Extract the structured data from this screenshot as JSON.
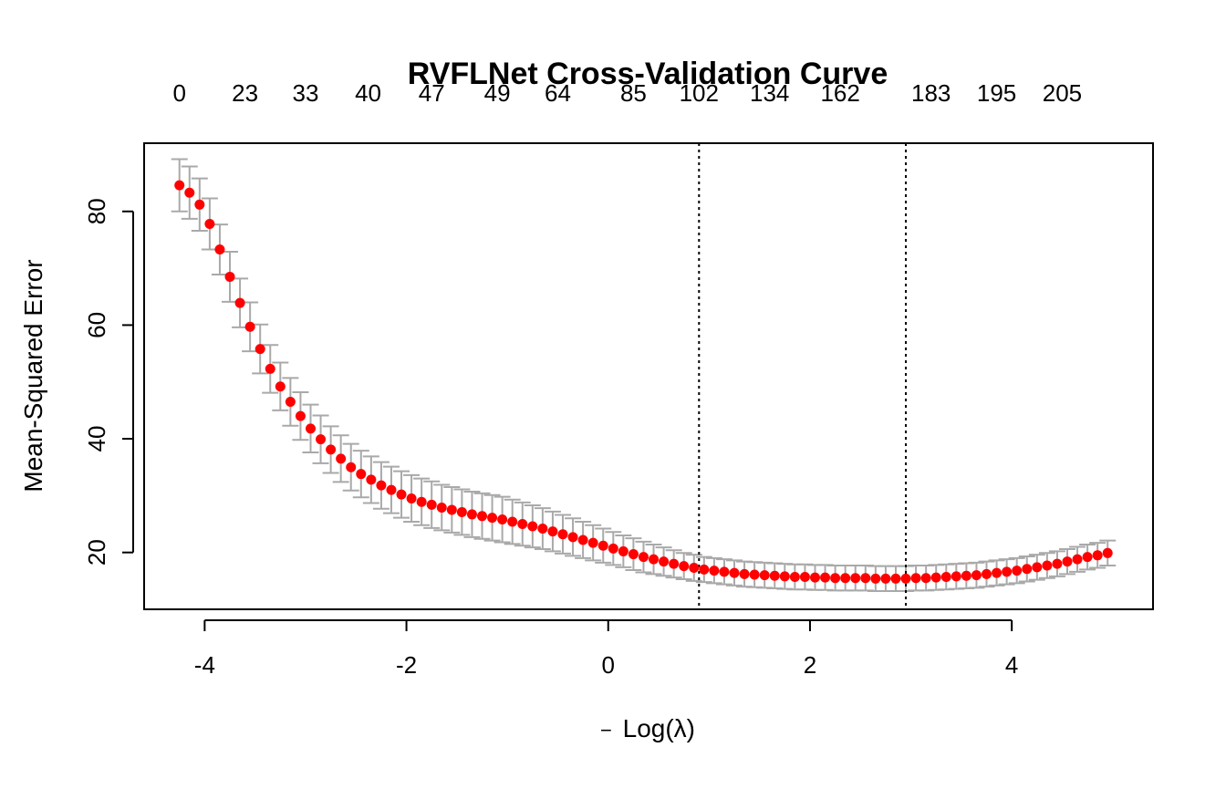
{
  "chart_data": {
    "type": "scatter",
    "title": "RVFLNet Cross-Validation Curve",
    "xlabel_prefix": "−",
    "xlabel_main": "Log(λ)",
    "ylabel": "Mean-Squared Error",
    "xlim": [
      -4.6,
      5.4
    ],
    "ylim": [
      10,
      92
    ],
    "x_ticks": [
      "-4",
      "-2",
      "0",
      "2",
      "4"
    ],
    "y_ticks": [
      "20",
      "40",
      "60",
      "80"
    ],
    "top_axis_labels": [
      "0",
      "23",
      "33",
      "40",
      "47",
      "49",
      "64",
      "85",
      "102",
      "134",
      "162",
      "183",
      "195",
      "205"
    ],
    "top_axis_x": [
      -4.25,
      -3.6,
      -3.0,
      -2.38,
      -1.75,
      -1.1,
      -0.5,
      0.25,
      0.9,
      1.6,
      2.3,
      3.2,
      3.85,
      4.5
    ],
    "vlines_x": [
      0.9,
      2.95
    ],
    "colors": {
      "points": "#ff0000",
      "error_bars": "#a9a9a9",
      "vlines": "#000000",
      "frame": "#000000"
    },
    "series": [
      {
        "x": [
          -4.25,
          -4.15,
          -4.05,
          -3.95,
          -3.85,
          -3.75,
          -3.65,
          -3.55,
          -3.45,
          -3.35,
          -3.25,
          -3.15,
          -3.05,
          -2.95,
          -2.85,
          -2.75,
          -2.65,
          -2.55,
          -2.45,
          -2.35,
          -2.25,
          -2.15,
          -2.05,
          -1.95,
          -1.85,
          -1.75,
          -1.65,
          -1.55,
          -1.45,
          -1.35,
          -1.25,
          -1.15,
          -1.05,
          -0.95,
          -0.85,
          -0.75,
          -0.65,
          -0.55,
          -0.45,
          -0.35,
          -0.25,
          -0.15,
          -0.05,
          0.05,
          0.15,
          0.25,
          0.35,
          0.45,
          0.55,
          0.65,
          0.75,
          0.85,
          0.95,
          1.05,
          1.15,
          1.25,
          1.35,
          1.45,
          1.55,
          1.65,
          1.75,
          1.85,
          1.95,
          2.05,
          2.15,
          2.25,
          2.35,
          2.45,
          2.55,
          2.65,
          2.75,
          2.85,
          2.95,
          3.05,
          3.15,
          3.25,
          3.35,
          3.45,
          3.55,
          3.65,
          3.75,
          3.85,
          3.95,
          4.05,
          4.15,
          4.25,
          4.35,
          4.45,
          4.55,
          4.65,
          4.75,
          4.85,
          4.95
        ],
        "y": [
          84.6,
          83.3,
          81.2,
          77.8,
          73.3,
          68.5,
          63.9,
          59.7,
          55.8,
          52.3,
          49.2,
          46.5,
          44.0,
          41.8,
          39.9,
          38.1,
          36.5,
          35.0,
          33.8,
          32.8,
          31.8,
          31.0,
          30.2,
          29.5,
          28.9,
          28.4,
          27.9,
          27.5,
          27.1,
          26.7,
          26.4,
          26.1,
          25.8,
          25.4,
          25.0,
          24.6,
          24.2,
          23.7,
          23.2,
          22.7,
          22.2,
          21.7,
          21.2,
          20.7,
          20.2,
          19.7,
          19.2,
          18.8,
          18.4,
          18.0,
          17.6,
          17.3,
          17.0,
          16.8,
          16.6,
          16.4,
          16.2,
          16.1,
          16.0,
          15.9,
          15.8,
          15.7,
          15.7,
          15.6,
          15.6,
          15.5,
          15.5,
          15.5,
          15.5,
          15.4,
          15.4,
          15.4,
          15.4,
          15.5,
          15.5,
          15.6,
          15.7,
          15.8,
          15.9,
          16.0,
          16.2,
          16.4,
          16.6,
          16.8,
          17.1,
          17.4,
          17.7,
          18.0,
          18.4,
          18.8,
          19.2,
          19.5,
          19.9
        ],
        "err": [
          4.6,
          4.6,
          4.6,
          4.5,
          4.4,
          4.4,
          4.3,
          4.3,
          4.3,
          4.2,
          4.2,
          4.2,
          4.2,
          4.2,
          4.2,
          4.1,
          4.1,
          4.1,
          4.1,
          4.1,
          4.1,
          4.1,
          4.1,
          4.1,
          4.1,
          4.1,
          4.0,
          4.0,
          4.0,
          4.0,
          4.0,
          4.0,
          4.0,
          3.9,
          3.8,
          3.7,
          3.6,
          3.5,
          3.4,
          3.3,
          3.2,
          3.1,
          3.0,
          2.9,
          2.8,
          2.8,
          2.7,
          2.6,
          2.5,
          2.4,
          2.3,
          2.3,
          2.2,
          2.2,
          2.2,
          2.2,
          2.2,
          2.2,
          2.2,
          2.2,
          2.2,
          2.2,
          2.2,
          2.2,
          2.2,
          2.2,
          2.2,
          2.2,
          2.2,
          2.2,
          2.2,
          2.2,
          2.2,
          2.2,
          2.2,
          2.2,
          2.2,
          2.2,
          2.2,
          2.2,
          2.2,
          2.2,
          2.2,
          2.2,
          2.2,
          2.2,
          2.2,
          2.2,
          2.2,
          2.2,
          2.2,
          2.2,
          2.2
        ]
      }
    ]
  }
}
